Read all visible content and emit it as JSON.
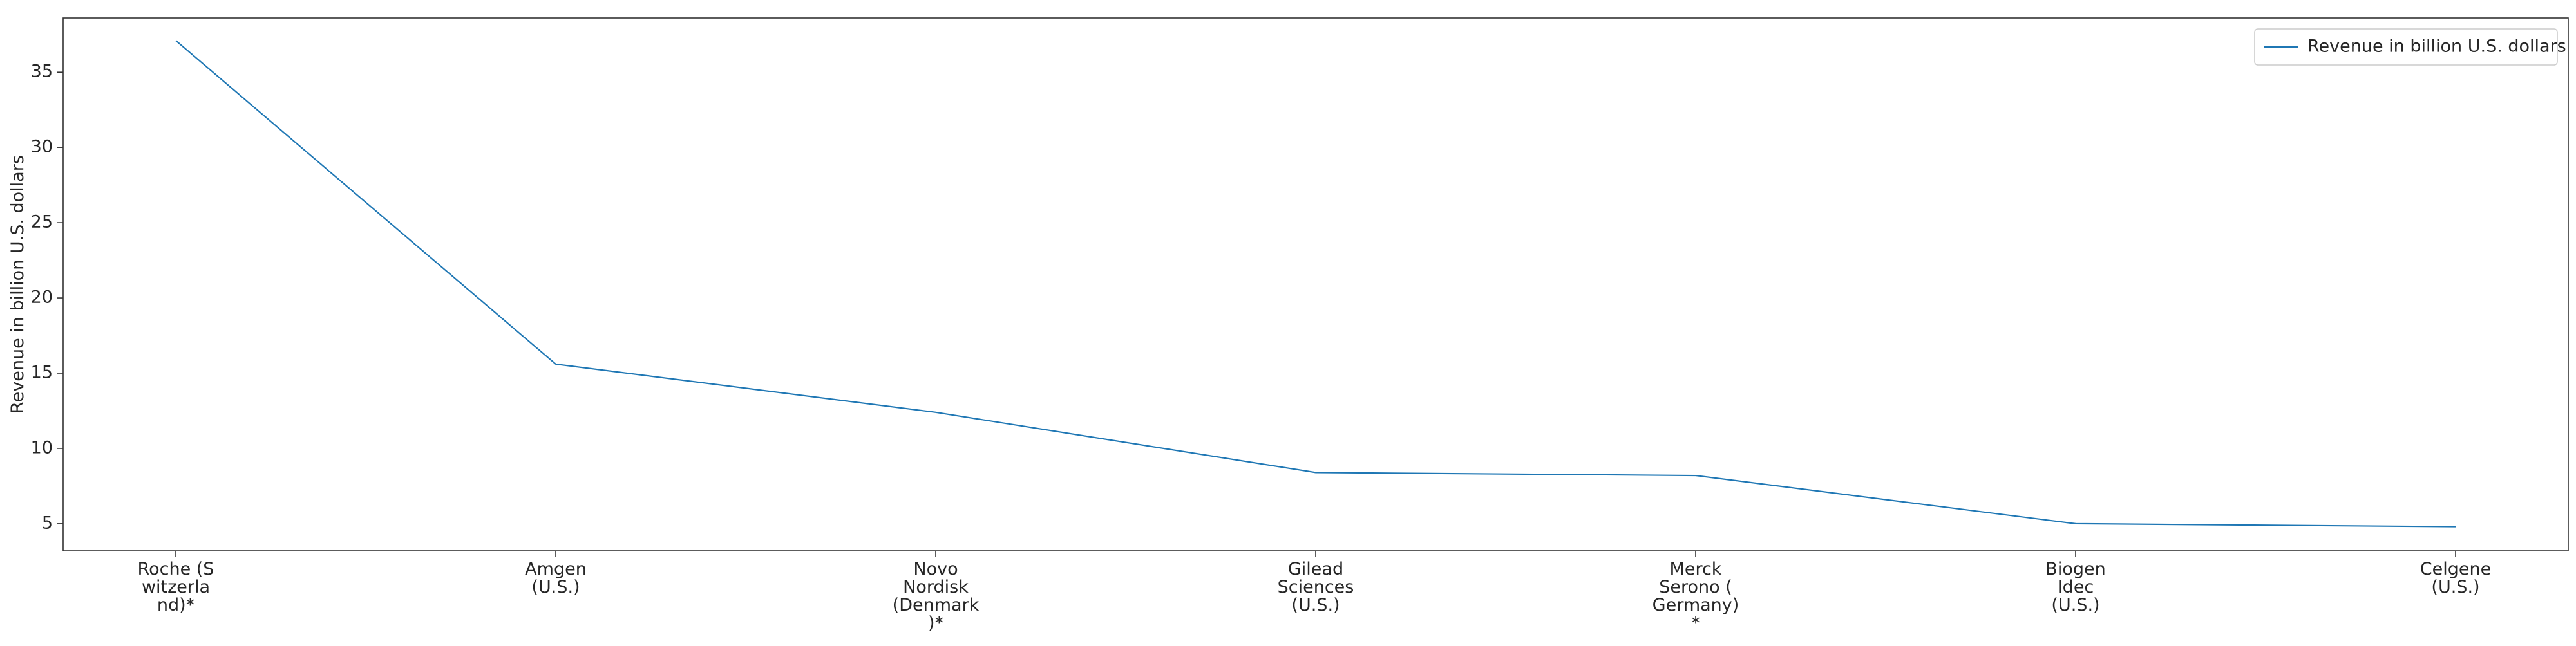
{
  "chart_data": {
    "type": "line",
    "title": "",
    "xlabel": "",
    "ylabel": "Revenue in billion U.S. dollars",
    "categories": [
      "Roche (S\nwitzerla\nnd)*",
      "Amgen\n(U.S.)",
      "Novo\nNordisk\n(Denmark\n)*",
      "Gilead\nSciences\n(U.S.)",
      "Merck\nSerono (\nGermany)\n*",
      "Biogen\nIdec\n(U.S.)",
      "Celgene\n(U.S.)"
    ],
    "series": [
      {
        "name": "Revenue in billion U.S. dollars",
        "values": [
          37.1,
          15.6,
          12.4,
          8.4,
          8.2,
          5.0,
          4.8
        ],
        "color": "#1f77b4"
      }
    ],
    "yticks": [
      5,
      10,
      15,
      20,
      25,
      30,
      35
    ],
    "ylim": [
      3.2,
      38.6
    ],
    "grid": false,
    "legend_position": "top-right"
  }
}
